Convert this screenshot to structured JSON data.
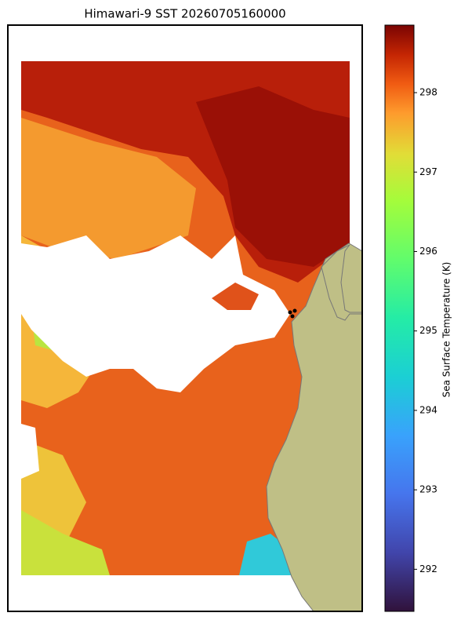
{
  "map": {
    "title": "Himawari-9 SST 20260705160000",
    "colorbar": {
      "label": "Sea Surface Temperature (K)",
      "lim": [
        291.47,
        298.85
      ],
      "ticks": [
        292,
        293,
        294,
        295,
        296,
        297,
        298
      ],
      "colormap": "turbo"
    }
  }
}
